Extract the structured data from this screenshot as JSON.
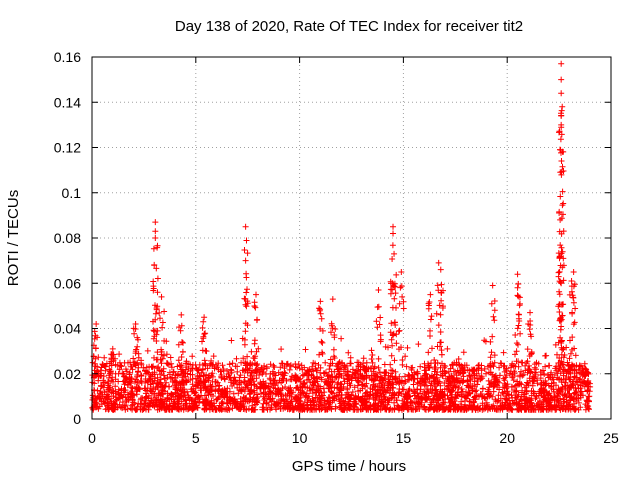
{
  "chart_data": {
    "type": "scatter",
    "title": "Day 138 of 2020, Rate Of TEC Index for receiver tit2",
    "xlabel": "GPS time / hours",
    "ylabel": "ROTI / TECUs",
    "xlim": [
      0,
      25
    ],
    "ylim": [
      0,
      0.16
    ],
    "xticks": [
      0,
      5,
      10,
      15,
      20,
      25
    ],
    "xtick_labels": [
      "0",
      "5",
      "10",
      "15",
      "20",
      "25"
    ],
    "yticks": [
      0,
      0.02,
      0.04,
      0.06,
      0.08,
      0.1,
      0.12,
      0.14,
      0.16
    ],
    "ytick_labels": [
      "0",
      "0.02",
      "0.04",
      "0.06",
      "0.08",
      "0.1",
      "0.12",
      "0.14",
      "0.16"
    ],
    "grid": true,
    "marker": "+",
    "series": [
      {
        "name": "ROTI",
        "color": "#ff0000",
        "x_range": [
          0,
          24
        ],
        "baseline_range": [
          0.004,
          0.025
        ],
        "peaks": [
          {
            "x": 0.2,
            "y": 0.042
          },
          {
            "x": 1.0,
            "y": 0.031
          },
          {
            "x": 2.1,
            "y": 0.042
          },
          {
            "x": 3.05,
            "y": 0.087
          },
          {
            "x": 3.05,
            "y": 0.083
          },
          {
            "x": 3.05,
            "y": 0.08
          },
          {
            "x": 3.35,
            "y": 0.054
          },
          {
            "x": 4.3,
            "y": 0.046
          },
          {
            "x": 5.4,
            "y": 0.045
          },
          {
            "x": 7.4,
            "y": 0.085
          },
          {
            "x": 7.4,
            "y": 0.07
          },
          {
            "x": 7.9,
            "y": 0.055
          },
          {
            "x": 11.0,
            "y": 0.052
          },
          {
            "x": 11.6,
            "y": 0.053
          },
          {
            "x": 13.8,
            "y": 0.057
          },
          {
            "x": 14.5,
            "y": 0.085
          },
          {
            "x": 14.5,
            "y": 0.082
          },
          {
            "x": 14.55,
            "y": 0.073
          },
          {
            "x": 14.9,
            "y": 0.065
          },
          {
            "x": 16.7,
            "y": 0.069
          },
          {
            "x": 16.8,
            "y": 0.066
          },
          {
            "x": 16.3,
            "y": 0.055
          },
          {
            "x": 19.3,
            "y": 0.059
          },
          {
            "x": 20.5,
            "y": 0.064
          },
          {
            "x": 20.5,
            "y": 0.058
          },
          {
            "x": 21.1,
            "y": 0.047
          },
          {
            "x": 22.6,
            "y": 0.157
          },
          {
            "x": 22.6,
            "y": 0.15
          },
          {
            "x": 22.6,
            "y": 0.144
          },
          {
            "x": 22.65,
            "y": 0.138
          },
          {
            "x": 22.6,
            "y": 0.134
          },
          {
            "x": 22.6,
            "y": 0.13
          },
          {
            "x": 22.55,
            "y": 0.088
          },
          {
            "x": 22.6,
            "y": 0.06
          },
          {
            "x": 23.2,
            "y": 0.065
          },
          {
            "x": 23.1,
            "y": 0.061
          }
        ]
      }
    ]
  }
}
